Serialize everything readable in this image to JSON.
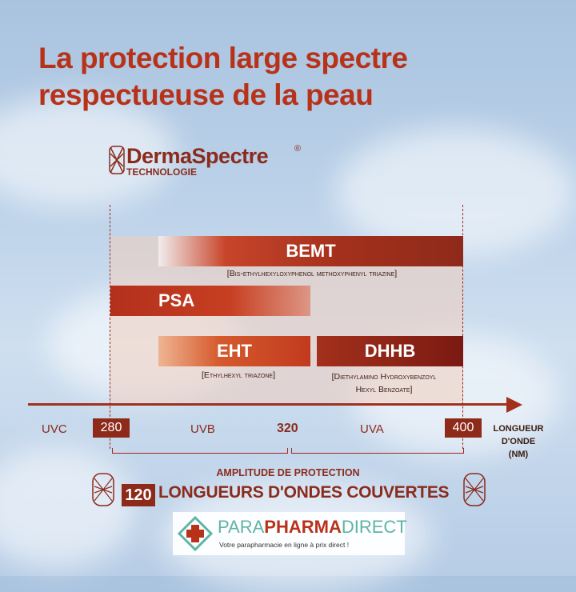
{
  "title": {
    "line1": "La protection large spectre",
    "line2": "respectueuse de la peau"
  },
  "brand": {
    "name": "DermaSpectre",
    "registered": "®",
    "subtitle": "TECHNOLOGIE"
  },
  "bars": {
    "bemt": {
      "label": "BEMT",
      "description": "[Bis-ethylhexyloxyphenol methoxyphenyl triazine]"
    },
    "psa": {
      "label": "PSA"
    },
    "eht": {
      "label": "EHT",
      "description": "[Ethylhexyl triazone]"
    },
    "dhhb": {
      "label": "DHHB",
      "description_line1": "[Diethylamino Hydroxybenzoyl",
      "description_line2": "Hexyl Benzoate]"
    }
  },
  "axis": {
    "ticks": [
      "280",
      "320",
      "400"
    ],
    "ranges": [
      "UVC",
      "UVB",
      "UVA"
    ],
    "label_line1": "LONGUEUR",
    "label_line2": "D'ONDE",
    "label_line3": "(NM)"
  },
  "summary": {
    "heading": "AMPLITUDE DE PROTECTION",
    "count": "120",
    "text": "LONGUEURS D'ONDES COUVERTES"
  },
  "logo": {
    "part1": "PARA",
    "part2": "PHARMA",
    "part3": "DIRECT",
    "tagline": "Votre parapharmacie en ligne à prix direct !"
  },
  "colors": {
    "title": "#b8321a",
    "bemt": "#a3301c",
    "psa": "#c23a1e",
    "eht": "#d55a2c",
    "dhhb": "#7a1a12",
    "logo_green": "#5fb4a4",
    "logo_red": "#b8321a"
  }
}
